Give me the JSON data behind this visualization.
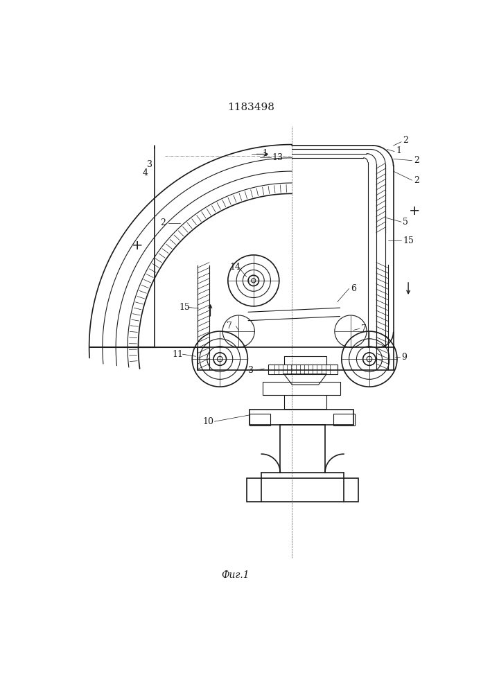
{
  "title": "1183498",
  "caption": "Фиг.1",
  "bg_color": "#ffffff",
  "line_color": "#1a1a1a",
  "fig_width": 7.07,
  "fig_height": 10.0,
  "dpi": 100
}
